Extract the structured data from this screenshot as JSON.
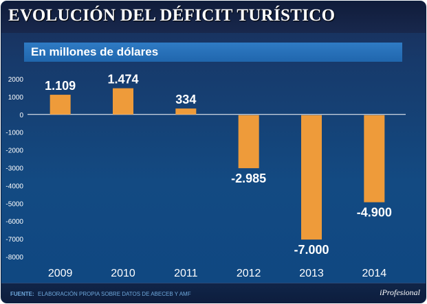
{
  "header": {
    "title": "EVOLUCIÓN DEL DÉFICIT TURÍSTICO"
  },
  "subtitle": "En millones de dólares",
  "footer": {
    "source_label": "FUENTE:",
    "source_text": "ELABORACIÓN PROPIA SOBRE DATOS DE ABECEB Y AMF",
    "brand": "iProfesional"
  },
  "colors": {
    "bar": "#ee9b3a",
    "axis_text": "#ffffff",
    "gridline": "#3d6fa6"
  },
  "chart_data": {
    "type": "bar",
    "title": "EVOLUCIÓN DEL DÉFICIT TURÍSTICO",
    "subtitle": "En millones de dólares",
    "categories": [
      "2009",
      "2010",
      "2011",
      "2012",
      "2013",
      "2014"
    ],
    "values": [
      1109,
      1474,
      334,
      -2985,
      -7000,
      -4900
    ],
    "value_labels": [
      "1.109",
      "1.474",
      "334",
      "-2.985",
      "-7.000",
      "-4.900"
    ],
    "ylim": [
      -8000,
      2000
    ],
    "yticks": [
      2000,
      1000,
      0,
      -1000,
      -2000,
      -3000,
      -4000,
      -5000,
      -6000,
      -7000,
      -8000
    ],
    "xlabel": "",
    "ylabel": ""
  }
}
